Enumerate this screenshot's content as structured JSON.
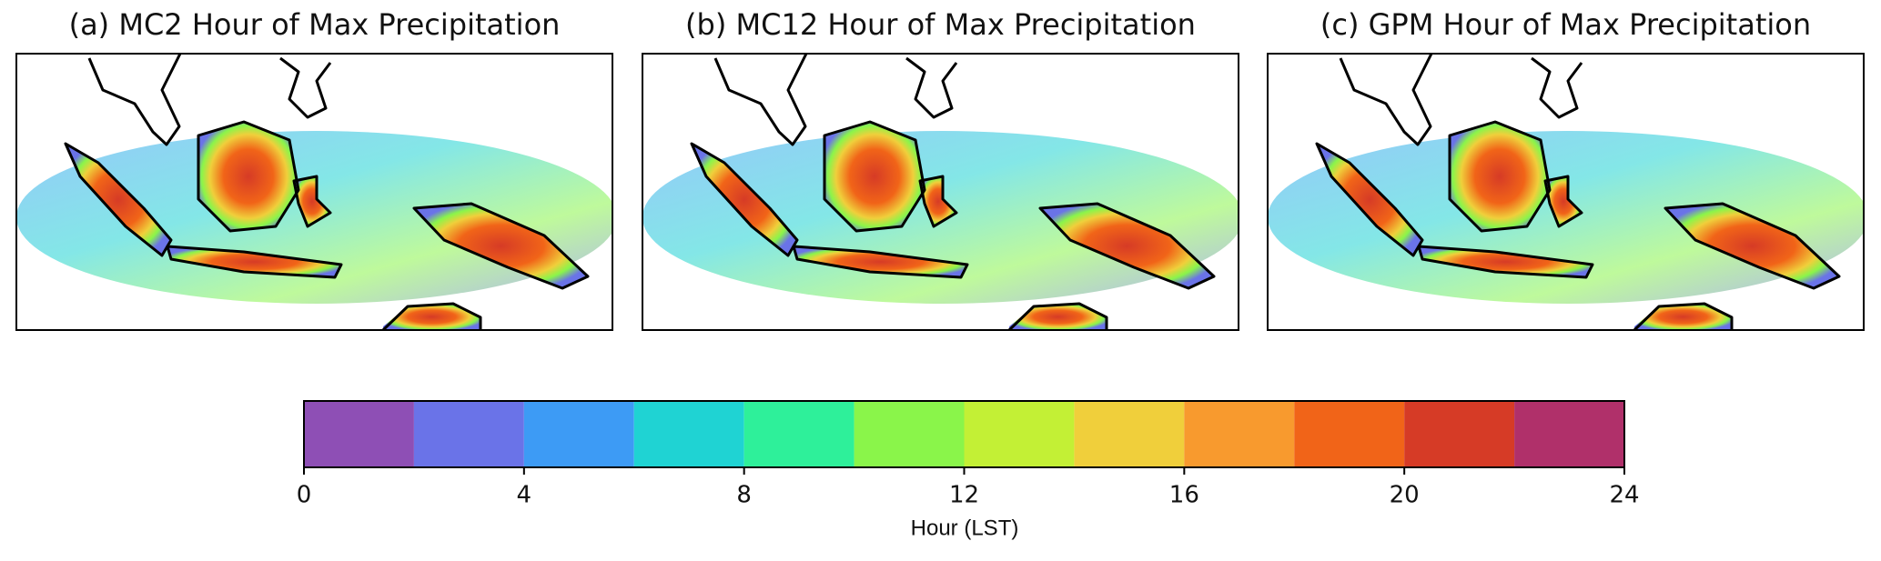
{
  "panels": [
    {
      "title": "(a) MC2 Hour of Max Precipitation"
    },
    {
      "title": "(b) MC12 Hour of Max Precipitation"
    },
    {
      "title": "(c) GPM Hour of Max Precipitation"
    }
  ],
  "colorbar": {
    "label": "Hour (LST)",
    "bounds": [
      0,
      2,
      4,
      6,
      8,
      10,
      12,
      14,
      16,
      18,
      20,
      22,
      24
    ],
    "colors": [
      "#8e4fb5",
      "#6a73e8",
      "#3d9bf5",
      "#1fd3d3",
      "#2ef09a",
      "#8af54a",
      "#c3f035",
      "#f0cf3b",
      "#f89a2e",
      "#f16418",
      "#d63b26",
      "#b0306a"
    ],
    "lim": [
      0,
      24
    ],
    "ticks": [
      0,
      4,
      8,
      12,
      16,
      20,
      24
    ]
  }
}
